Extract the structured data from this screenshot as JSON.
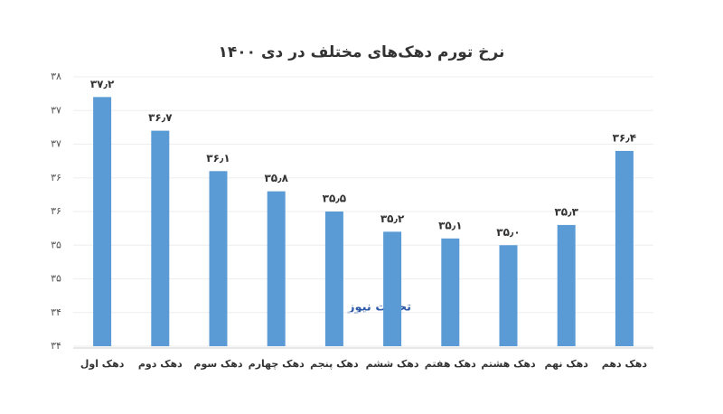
{
  "chart_data": {
    "type": "bar",
    "title": "نرخ تورم دهک‌های مختلف در دی ۱۴۰۰",
    "watermark": "تجارت نیوز",
    "categories": [
      "دهک اول",
      "دهک دوم",
      "دهک سوم",
      "دهک چهارم",
      "دهک پنجم",
      "دهک ششم",
      "دهک هفتم",
      "دهک هشتم",
      "دهک نهم",
      "دهک دهم"
    ],
    "values": [
      37.2,
      36.7,
      36.1,
      35.8,
      35.5,
      35.2,
      35.1,
      35.0,
      35.3,
      36.4
    ],
    "value_labels": [
      "۳۷٫۲",
      "۳۶٫۷",
      "۳۶٫۱",
      "۳۵٫۸",
      "۳۵٫۵",
      "۳۵٫۲",
      "۳۵٫۱",
      "۳۵٫۰",
      "۳۵٫۳",
      "۳۶٫۴"
    ],
    "color": "#5b9bd5",
    "ylim": [
      33.5,
      37.5
    ],
    "yticks": [
      {
        "value": 33.5,
        "label": "۳۴"
      },
      {
        "value": 34,
        "label": "۳۴"
      },
      {
        "value": 34.5,
        "label": "۳۵"
      },
      {
        "value": 35,
        "label": "۳۵"
      },
      {
        "value": 35.5,
        "label": "۳۶"
      },
      {
        "value": 36,
        "label": "۳۶"
      },
      {
        "value": 36.5,
        "label": "۳۷"
      },
      {
        "value": 37,
        "label": "۳۷"
      },
      {
        "value": 37.5,
        "label": "۳۸"
      }
    ],
    "grid": true
  }
}
